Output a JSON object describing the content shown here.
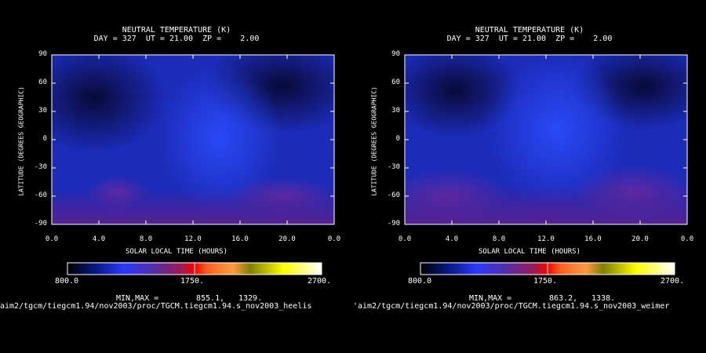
{
  "chart_data": [
    {
      "type": "heatmap",
      "title": "NEUTRAL TEMPERATURE (K)",
      "subtitle": "DAY = 327  UT = 21.00  ZP =    2.00",
      "xlabel": "SOLAR LOCAL TIME (HOURS)",
      "ylabel": "LATITUDE (DEGREES GEOGRAPHIC)",
      "xlim": [
        0,
        24
      ],
      "ylim": [
        -90,
        90
      ],
      "x_ticks": [
        "0.0",
        "4.0",
        "8.0",
        "12.0",
        "16.0",
        "20.0",
        "0.0"
      ],
      "y_ticks": [
        "90",
        "60",
        "30",
        "0",
        "-30",
        "-60",
        "-90"
      ],
      "colorbar": {
        "min": 800,
        "max": 2700,
        "labels": [
          "800.0",
          "1750.",
          "2700."
        ]
      },
      "min_max_label": "MIN,MAX =",
      "min": "855.1,",
      "max": "1329.",
      "file_path": "aim2/tgcm/tiegcm1.94/nov2003/proc/TGCM.tiegcm1.94.s_nov2003_heelis"
    },
    {
      "type": "heatmap",
      "title": "NEUTRAL TEMPERATURE (K)",
      "subtitle": "DAY = 327  UT = 21.00  ZP =    2.00",
      "xlabel": "SOLAR LOCAL TIME (HOURS)",
      "ylabel": "LATITUDE (DEGREES GEOGRAPHIC)",
      "xlim": [
        0,
        24
      ],
      "ylim": [
        -90,
        90
      ],
      "x_ticks": [
        "0.0",
        "4.0",
        "8.0",
        "12.0",
        "16.0",
        "20.0",
        "0.0"
      ],
      "y_ticks": [
        "90",
        "60",
        "30",
        "0",
        "-30",
        "-60",
        "-90"
      ],
      "colorbar": {
        "min": 800,
        "max": 2700,
        "labels": [
          "800.0",
          "1750.",
          "2700."
        ]
      },
      "min_max_label": "MIN,MAX =",
      "min": "863.2,",
      "max": "1338.",
      "file_path": "'aim2/tgcm/tiegcm1.94/nov2003/proc/TGCM.tiegcm1.94.s_nov2003_weimer"
    }
  ]
}
